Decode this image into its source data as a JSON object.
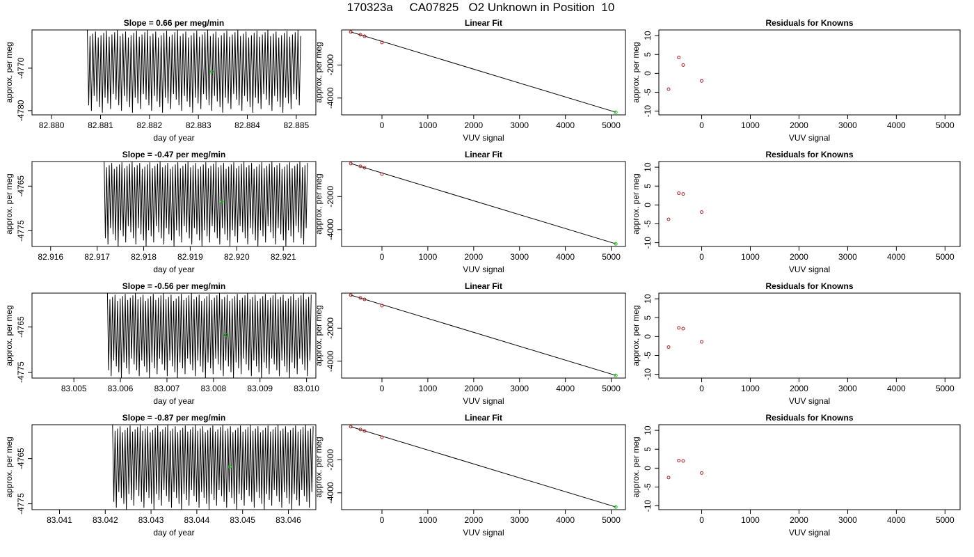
{
  "figure": {
    "title": "170323a     CA07825   O2 Unknown in Position  10"
  },
  "colors": {
    "trace": "#000000",
    "unknown_point": "#00cc00",
    "known_point": "#b22222",
    "fit_line": "#000000"
  },
  "chart_data": [
    {
      "type": "line",
      "panel": "time-series-1",
      "title": "Slope =  0.66  per meg/min",
      "xlabel": "day of year",
      "ylabel": "approx. per meg",
      "xlim": [
        82.8796,
        82.8854
      ],
      "ylim": [
        -4781,
        -4761
      ],
      "x_ticks": [
        "82.880",
        "82.881",
        "82.882",
        "82.883",
        "82.884",
        "82.885"
      ],
      "y_ticks": [
        "-4780",
        "-4770"
      ],
      "trace": {
        "x_start": 82.88073,
        "x_end": 82.88509,
        "y_top": -4761,
        "y_bottom": -4780.5,
        "y_center": -4770.8,
        "cycles": 78
      },
      "unknown_point": {
        "x": 82.88327,
        "y": -4770.8
      }
    },
    {
      "type": "scatter",
      "panel": "linear-fit-1",
      "title": "Linear Fit",
      "xlabel": "VUV signal",
      "ylabel": "approx. per meg",
      "xlim": [
        -880,
        5310
      ],
      "ylim": [
        -5020,
        120
      ],
      "x_ticks": [
        "0",
        "1000",
        "2000",
        "3000",
        "4000",
        "5000"
      ],
      "y_ticks": [
        "-2000",
        "-4000"
      ],
      "known_points": [
        {
          "x": -680,
          "y": 0
        },
        {
          "x": -470,
          "y": -170
        },
        {
          "x": -380,
          "y": -260
        },
        {
          "x": 0,
          "y": -640
        }
      ],
      "fit_line": [
        {
          "x": -680,
          "y": 0
        },
        {
          "x": 5100,
          "y": -4860
        }
      ],
      "unknown_point": {
        "x": 5100,
        "y": -4860
      }
    },
    {
      "type": "scatter",
      "panel": "residuals-1",
      "title": "Residuals for Knowns",
      "xlabel": "VUV signal",
      "ylabel": "approx. per meg",
      "xlim": [
        -880,
        5310
      ],
      "ylim": [
        -11,
        11.5
      ],
      "x_ticks": [
        "0",
        "1000",
        "2000",
        "3000",
        "4000",
        "5000"
      ],
      "y_ticks": [
        "-10",
        "-5",
        "0",
        "5",
        "10"
      ],
      "points": [
        {
          "x": -680,
          "y": -4.2
        },
        {
          "x": -470,
          "y": 4.2
        },
        {
          "x": -380,
          "y": 2.2
        },
        {
          "x": 0,
          "y": -2.0
        }
      ]
    },
    {
      "type": "line",
      "panel": "time-series-2",
      "title": "Slope =  -0.47  per meg/min",
      "xlabel": "day of year",
      "ylabel": "approx. per meg",
      "xlim": [
        82.9156,
        82.9217
      ],
      "ylim": [
        -4778.5,
        -4759.5
      ],
      "x_ticks": [
        "82.916",
        "82.917",
        "82.918",
        "82.919",
        "82.920",
        "82.921"
      ],
      "y_ticks": [
        "-4765",
        "-4775"
      ],
      "trace": {
        "x_start": 82.91715,
        "x_end": 82.92152,
        "y_top": -4759.5,
        "y_bottom": -4778.5,
        "y_center": -4768.5,
        "cycles": 80
      },
      "unknown_point": {
        "x": 82.91968,
        "y": -4768.5
      }
    },
    {
      "type": "scatter",
      "panel": "linear-fit-2",
      "title": "Linear Fit",
      "xlabel": "VUV signal",
      "ylabel": "approx. per meg",
      "xlim": [
        -880,
        5310
      ],
      "ylim": [
        -5020,
        120
      ],
      "x_ticks": [
        "0",
        "1000",
        "2000",
        "3000",
        "4000",
        "5000"
      ],
      "y_ticks": [
        "-2000",
        "-4000"
      ],
      "known_points": [
        {
          "x": -680,
          "y": 0
        },
        {
          "x": -470,
          "y": -170
        },
        {
          "x": -380,
          "y": -260
        },
        {
          "x": 0,
          "y": -640
        }
      ],
      "fit_line": [
        {
          "x": -680,
          "y": 0
        },
        {
          "x": 5100,
          "y": -4860
        }
      ],
      "unknown_point": {
        "x": 5100,
        "y": -4860
      }
    },
    {
      "type": "scatter",
      "panel": "residuals-2",
      "title": "Residuals for Knowns",
      "xlabel": "VUV signal",
      "ylabel": "approx. per meg",
      "xlim": [
        -880,
        5310
      ],
      "ylim": [
        -11,
        11.5
      ],
      "x_ticks": [
        "0",
        "1000",
        "2000",
        "3000",
        "4000",
        "5000"
      ],
      "y_ticks": [
        "-10",
        "-5",
        "0",
        "5",
        "10"
      ],
      "points": [
        {
          "x": -680,
          "y": -3.8
        },
        {
          "x": -470,
          "y": 3.1
        },
        {
          "x": -380,
          "y": 2.9
        },
        {
          "x": 0,
          "y": -1.9
        }
      ]
    },
    {
      "type": "line",
      "panel": "time-series-3",
      "title": "Slope =  -0.56  per meg/min",
      "xlabel": "day of year",
      "ylabel": "approx. per meg",
      "xlim": [
        83.0041,
        83.0102
      ],
      "ylim": [
        -4776.3,
        -4757.5
      ],
      "x_ticks": [
        "83.005",
        "83.006",
        "83.007",
        "83.008",
        "83.009",
        "83.010"
      ],
      "y_ticks": [
        "-4765",
        "-4775"
      ],
      "trace": {
        "x_start": 83.00572,
        "x_end": 83.0101,
        "y_top": -4757.5,
        "y_bottom": -4776.3,
        "y_center": -4766.8,
        "cycles": 80
      },
      "unknown_point": {
        "x": 83.00827,
        "y": -4766.8
      }
    },
    {
      "type": "scatter",
      "panel": "linear-fit-3",
      "title": "Linear Fit",
      "xlabel": "VUV signal",
      "ylabel": "approx. per meg",
      "xlim": [
        -880,
        5310
      ],
      "ylim": [
        -5020,
        120
      ],
      "x_ticks": [
        "0",
        "1000",
        "2000",
        "3000",
        "4000",
        "5000"
      ],
      "y_ticks": [
        "-2000",
        "-4000"
      ],
      "known_points": [
        {
          "x": -680,
          "y": 0
        },
        {
          "x": -470,
          "y": -170
        },
        {
          "x": -380,
          "y": -260
        },
        {
          "x": 0,
          "y": -640
        }
      ],
      "fit_line": [
        {
          "x": -680,
          "y": 0
        },
        {
          "x": 5100,
          "y": -4860
        }
      ],
      "unknown_point": {
        "x": 5100,
        "y": -4860
      }
    },
    {
      "type": "scatter",
      "panel": "residuals-3",
      "title": "Residuals for Knowns",
      "xlabel": "VUV signal",
      "ylabel": "approx. per meg",
      "xlim": [
        -880,
        5310
      ],
      "ylim": [
        -11,
        11.5
      ],
      "x_ticks": [
        "0",
        "1000",
        "2000",
        "3000",
        "4000",
        "5000"
      ],
      "y_ticks": [
        "-10",
        "-5",
        "0",
        "5",
        "10"
      ],
      "points": [
        {
          "x": -680,
          "y": -2.8
        },
        {
          "x": -470,
          "y": 2.3
        },
        {
          "x": -380,
          "y": 2.1
        },
        {
          "x": 0,
          "y": -1.4
        }
      ]
    },
    {
      "type": "line",
      "panel": "time-series-4",
      "title": "Slope =  -0.87  per meg/min",
      "xlabel": "day of year",
      "ylabel": "approx. per meg",
      "xlim": [
        83.0404,
        83.0466
      ],
      "ylim": [
        -4776.3,
        -4757.5
      ],
      "x_ticks": [
        "83.041",
        "83.042",
        "83.043",
        "83.044",
        "83.045",
        "83.046"
      ],
      "y_ticks": [
        "-4765",
        "-4775"
      ],
      "trace": {
        "x_start": 83.04216,
        "x_end": 83.04654,
        "y_top": -4757.5,
        "y_bottom": -4776.3,
        "y_center": -4766.8,
        "cycles": 80
      },
      "unknown_point": {
        "x": 83.04472,
        "y": -4766.8
      }
    },
    {
      "type": "scatter",
      "panel": "linear-fit-4",
      "title": "Linear Fit",
      "xlabel": "VUV signal",
      "ylabel": "approx. per meg",
      "xlim": [
        -880,
        5310
      ],
      "ylim": [
        -5020,
        120
      ],
      "x_ticks": [
        "0",
        "1000",
        "2000",
        "3000",
        "4000",
        "5000"
      ],
      "y_ticks": [
        "-2000",
        "-4000"
      ],
      "known_points": [
        {
          "x": -680,
          "y": 0
        },
        {
          "x": -470,
          "y": -170
        },
        {
          "x": -380,
          "y": -260
        },
        {
          "x": 0,
          "y": -640
        }
      ],
      "fit_line": [
        {
          "x": -680,
          "y": 0
        },
        {
          "x": 5100,
          "y": -4860
        }
      ],
      "unknown_point": {
        "x": 5100,
        "y": -4860
      }
    },
    {
      "type": "scatter",
      "panel": "residuals-4",
      "title": "Residuals for Knowns",
      "xlabel": "VUV signal",
      "ylabel": "approx. per meg",
      "xlim": [
        -880,
        5310
      ],
      "ylim": [
        -11,
        11.5
      ],
      "x_ticks": [
        "0",
        "1000",
        "2000",
        "3000",
        "4000",
        "5000"
      ],
      "y_ticks": [
        "-10",
        "-5",
        "0",
        "5",
        "10"
      ],
      "points": [
        {
          "x": -680,
          "y": -2.5
        },
        {
          "x": -470,
          "y": 2.0
        },
        {
          "x": -380,
          "y": 1.9
        },
        {
          "x": 0,
          "y": -1.3
        }
      ]
    }
  ]
}
